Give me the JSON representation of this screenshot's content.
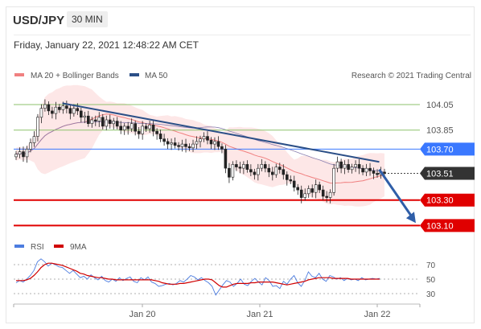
{
  "header": {
    "symbol": "USD/JPY",
    "timeframe": "30 MIN",
    "datetime": "Friday, January 22, 2021 12:48:22 AM CET"
  },
  "legend": {
    "ma20": "MA 20 + Bollinger Bands",
    "ma50": "MA 50",
    "credit": "Research © 2021 Trading Central",
    "rsi": "RSI",
    "ma9": "9MA"
  },
  "colors": {
    "ma20": "#f08080",
    "ma50": "#2b4f87",
    "support": "#e00000",
    "resistance_green": "#8ec26b",
    "resistance_blue": "#3a78ff",
    "current": "#333333",
    "rsi": "#4d7de0",
    "ma9": "#d00000"
  },
  "chart_data": [
    {
      "type": "candlestick",
      "x_ticks": [
        "Jan 20",
        "Jan 21",
        "Jan 22"
      ],
      "levels": [
        {
          "value": 104.05,
          "label": "104.05",
          "kind": "resistance"
        },
        {
          "value": 103.85,
          "label": "103.85",
          "kind": "resistance"
        },
        {
          "value": 103.7,
          "label": "103.70",
          "kind": "pivot"
        },
        {
          "value": 103.51,
          "label": "103.51",
          "kind": "current"
        },
        {
          "value": 103.3,
          "label": "103.30",
          "kind": "support"
        },
        {
          "value": 103.1,
          "label": "103.10",
          "kind": "support"
        }
      ],
      "trendline": [
        {
          "x": 0.12,
          "y": 104.06
        },
        {
          "x": 0.9,
          "y": 103.6
        }
      ],
      "forecast_arrow": [
        {
          "x": 0.9,
          "y": 103.54
        },
        {
          "x": 0.99,
          "y": 103.12
        }
      ],
      "close": [
        103.66,
        103.68,
        103.64,
        103.7,
        103.75,
        103.8,
        103.95,
        104.02,
        104.05,
        104.0,
        103.98,
        104.03,
        104.01,
        104.04,
        104.02,
        103.98,
        104.02,
        104.0,
        103.95,
        103.96,
        103.9,
        103.93,
        103.92,
        103.95,
        103.88,
        103.93,
        103.9,
        103.92,
        103.88,
        103.85,
        103.88,
        103.86,
        103.9,
        103.84,
        103.82,
        103.88,
        103.86,
        103.89,
        103.84,
        103.82,
        103.78,
        103.76,
        103.74,
        103.75,
        103.73,
        103.72,
        103.74,
        103.72,
        103.71,
        103.74,
        103.76,
        103.78,
        103.8,
        103.77,
        103.74,
        103.76,
        103.72,
        103.7,
        103.55,
        103.48,
        103.58,
        103.56,
        103.55,
        103.58,
        103.54,
        103.52,
        103.5,
        103.55,
        103.58,
        103.55,
        103.52,
        103.5,
        103.56,
        103.54,
        103.5,
        103.46,
        103.45,
        103.4,
        103.38,
        103.32,
        103.35,
        103.39,
        103.36,
        103.42,
        103.38,
        103.33,
        103.32,
        103.36,
        103.55,
        103.6,
        103.55,
        103.58,
        103.54,
        103.56,
        103.58,
        103.55,
        103.52,
        103.55,
        103.53,
        103.51,
        103.5,
        103.52,
        103.51
      ]
    },
    {
      "type": "line",
      "x_ticks": [
        "Jan 20",
        "Jan 21",
        "Jan 22"
      ],
      "y_ticks": [
        70,
        50,
        30
      ],
      "series": [
        {
          "name": "RSI",
          "values": [
            45,
            48,
            46,
            50,
            55,
            62,
            74,
            78,
            74,
            68,
            72,
            70,
            67,
            66,
            62,
            58,
            62,
            57,
            52,
            54,
            50,
            56,
            52,
            49,
            54,
            48,
            46,
            50,
            47,
            52,
            48,
            51,
            53,
            47,
            45,
            52,
            49,
            53,
            46,
            44,
            40,
            41,
            43,
            44,
            42,
            44,
            48,
            46,
            50,
            55,
            53,
            49,
            52,
            48,
            45,
            40,
            28,
            35,
            42,
            48,
            46,
            40,
            44,
            50,
            43,
            41,
            47,
            51,
            46,
            42,
            52,
            48,
            40,
            41,
            37,
            47,
            43,
            50,
            55,
            45,
            40,
            48,
            60,
            54,
            52,
            58,
            50,
            47,
            55,
            53,
            50,
            52,
            48,
            51,
            49,
            50,
            48,
            52,
            49,
            50,
            51,
            50,
            51
          ]
        },
        {
          "name": "9MA",
          "values": [
            48,
            48,
            48,
            49,
            51,
            55,
            60,
            66,
            70,
            72,
            72,
            71,
            70,
            69,
            67,
            65,
            63,
            61,
            58,
            57,
            55,
            54,
            53,
            52,
            52,
            51,
            50,
            50,
            49,
            49,
            49,
            49,
            49,
            49,
            49,
            49,
            49,
            49,
            49,
            48,
            47,
            45,
            44,
            43,
            43,
            43,
            44,
            44,
            45,
            46,
            47,
            48,
            49,
            50,
            50,
            49,
            45,
            41,
            39,
            39,
            41,
            43,
            44,
            44,
            44,
            44,
            45,
            45,
            46,
            46,
            46,
            46,
            46,
            45,
            44,
            43,
            42,
            43,
            44,
            45,
            46,
            47,
            49,
            50,
            51,
            52,
            52,
            52,
            52,
            51,
            51,
            51,
            51,
            51,
            50,
            50,
            50,
            50,
            50,
            50,
            50,
            50,
            50
          ]
        }
      ]
    }
  ]
}
